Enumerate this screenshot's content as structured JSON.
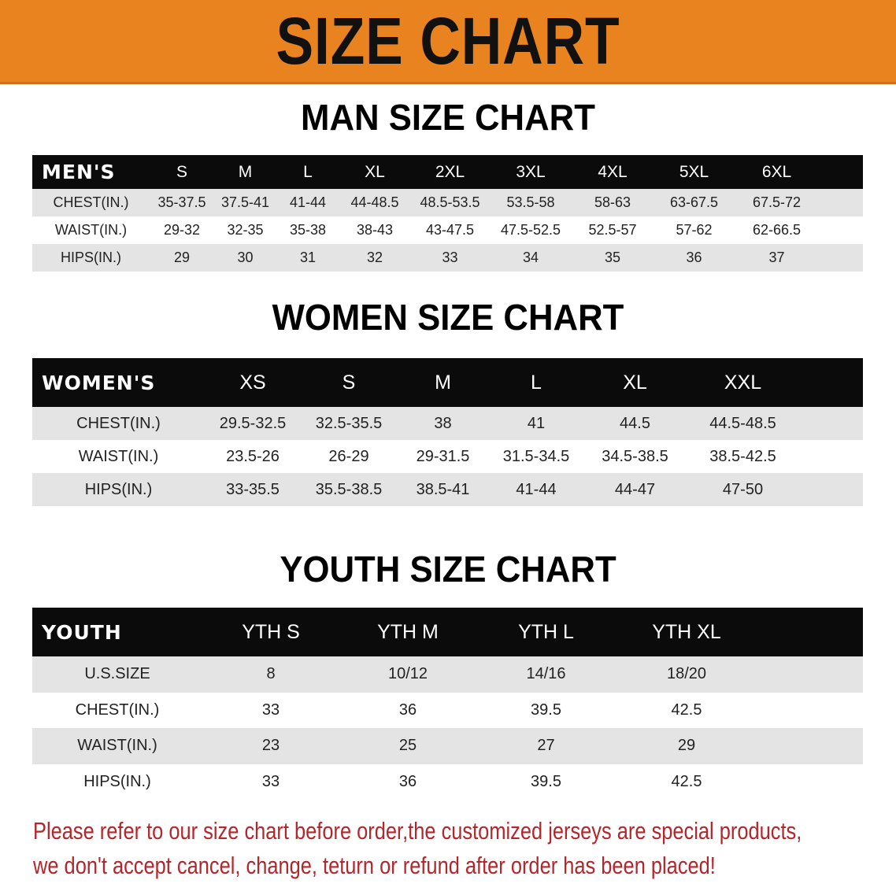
{
  "banner_title": "SIZE CHART",
  "colors": {
    "banner": "#e8831f",
    "header_row": "#0b0b0b",
    "stripe": "#e4e4e4",
    "note": "#b3262b"
  },
  "men": {
    "title": "MAN SIZE CHART",
    "header": [
      "MEN'S",
      "S",
      "M",
      "L",
      "XL",
      "2XL",
      "3XL",
      "4XL",
      "5XL",
      "6XL"
    ],
    "rows": [
      [
        "CHEST(IN.)",
        "35-37.5",
        "37.5-41",
        "41-44",
        "44-48.5",
        "48.5-53.5",
        "53.5-58",
        "58-63",
        "63-67.5",
        "67.5-72"
      ],
      [
        "WAIST(IN.)",
        "29-32",
        "32-35",
        "35-38",
        "38-43",
        "43-47.5",
        "47.5-52.5",
        "52.5-57",
        "57-62",
        "62-66.5"
      ],
      [
        "HIPS(IN.)",
        "29",
        "30",
        "31",
        "32",
        "33",
        "34",
        "35",
        "36",
        "37"
      ]
    ]
  },
  "women": {
    "title": "WOMEN SIZE CHART",
    "header": [
      "WOMEN'S",
      "XS",
      "S",
      "M",
      "L",
      "XL",
      "XXL"
    ],
    "rows": [
      [
        "CHEST(IN.)",
        "29.5-32.5",
        "32.5-35.5",
        "38",
        "41",
        "44.5",
        "44.5-48.5"
      ],
      [
        "WAIST(IN.)",
        "23.5-26",
        "26-29",
        "29-31.5",
        "31.5-34.5",
        "34.5-38.5",
        "38.5-42.5"
      ],
      [
        "HIPS(IN.)",
        "33-35.5",
        "35.5-38.5",
        "38.5-41",
        "41-44",
        "44-47",
        "47-50"
      ]
    ]
  },
  "youth": {
    "title": "YOUTH SIZE CHART",
    "header": [
      "YOUTH",
      "YTH S",
      "YTH M",
      "YTH L",
      "YTH XL"
    ],
    "rows": [
      [
        "U.S.SIZE",
        "8",
        "10/12",
        "14/16",
        "18/20"
      ],
      [
        "CHEST(IN.)",
        "33",
        "36",
        "39.5",
        "42.5"
      ],
      [
        "WAIST(IN.)",
        "23",
        "25",
        "27",
        "29"
      ],
      [
        "HIPS(IN.)",
        "33",
        "36",
        "39.5",
        "42.5"
      ]
    ]
  },
  "note": {
    "line1": "Please refer to our size chart before order,the customized jerseys are special products,",
    "line2": "we don't accept cancel, change, teturn or refund after order has been placed!"
  }
}
